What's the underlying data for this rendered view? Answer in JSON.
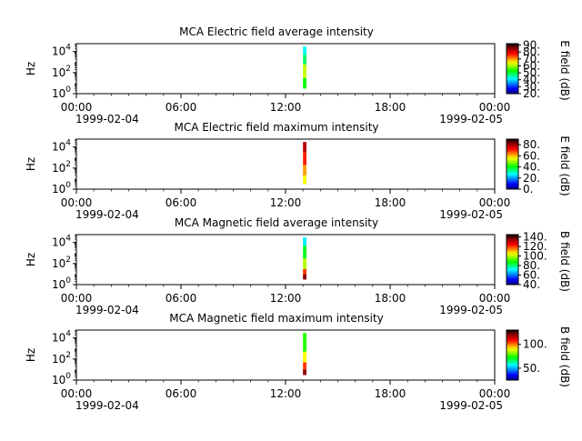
{
  "chart_data": [
    {
      "type": "heatmap",
      "title": "MCA  Electric field average intensity",
      "ylabel": "Hz",
      "colorbar_label": "E field (dB)",
      "colorbar_range": [
        20,
        92
      ],
      "colorbar_ticks": [
        "20.",
        "30.",
        "40.",
        "50.",
        "60.",
        "70.",
        "80.",
        "90."
      ],
      "y_scale": "log",
      "y_ticks": [
        {
          "base": "10",
          "exp": "0"
        },
        {
          "base": "10",
          "exp": "2"
        },
        {
          "base": "10",
          "exp": "4"
        }
      ],
      "x_ticks": [
        "00:00",
        "06:00",
        "12:00",
        "18:00",
        "00:00"
      ],
      "x_dates": [
        "1999-02-04",
        "1999-02-05"
      ],
      "burst": {
        "start": "13:00",
        "end": "13:12",
        "freq_min": 3,
        "freq_max": 30000,
        "levels": [
          {
            "freq_from": 3,
            "freq_to": 30,
            "value": 52
          },
          {
            "freq_from": 30,
            "freq_to": 600,
            "value": 62
          },
          {
            "freq_from": 600,
            "freq_to": 5000,
            "value": 48
          },
          {
            "freq_from": 5000,
            "freq_to": 30000,
            "value": 42
          }
        ]
      }
    },
    {
      "type": "heatmap",
      "title": "MCA  Electric field maximum intensity",
      "ylabel": "Hz",
      "colorbar_label": "E field (dB)",
      "colorbar_range": [
        0,
        90
      ],
      "colorbar_ticks": [
        "0.",
        "20.",
        "40.",
        "60.",
        "80."
      ],
      "y_scale": "log",
      "y_ticks": [
        {
          "base": "10",
          "exp": "0"
        },
        {
          "base": "10",
          "exp": "2"
        },
        {
          "base": "10",
          "exp": "4"
        }
      ],
      "x_ticks": [
        "00:00",
        "06:00",
        "12:00",
        "18:00",
        "00:00"
      ],
      "x_dates": [
        "1999-02-04",
        "1999-02-05"
      ],
      "burst": {
        "start": "13:00",
        "end": "13:12",
        "freq_min": 3,
        "freq_max": 30000,
        "levels": [
          {
            "freq_from": 3,
            "freq_to": 20,
            "value": 55
          },
          {
            "freq_from": 20,
            "freq_to": 200,
            "value": 62
          },
          {
            "freq_from": 200,
            "freq_to": 3000,
            "value": 70
          },
          {
            "freq_from": 3000,
            "freq_to": 30000,
            "value": 78
          }
        ]
      }
    },
    {
      "type": "heatmap",
      "title": "MCA  Magnetic field average intensity",
      "ylabel": "Hz",
      "colorbar_label": "B field (dB)",
      "colorbar_range": [
        40,
        145
      ],
      "colorbar_ticks": [
        "40.",
        "60.",
        "80.",
        "100.",
        "120.",
        "140."
      ],
      "y_scale": "log",
      "y_ticks": [
        {
          "base": "10",
          "exp": "0"
        },
        {
          "base": "10",
          "exp": "2"
        },
        {
          "base": "10",
          "exp": "4"
        }
      ],
      "x_ticks": [
        "00:00",
        "06:00",
        "12:00",
        "18:00",
        "00:00"
      ],
      "x_dates": [
        "1999-02-04",
        "1999-02-05"
      ],
      "burst": {
        "start": "13:00",
        "end": "13:12",
        "freq_min": 3,
        "freq_max": 30000,
        "levels": [
          {
            "freq_from": 3,
            "freq_to": 10,
            "value": 135
          },
          {
            "freq_from": 10,
            "freq_to": 30,
            "value": 120
          },
          {
            "freq_from": 30,
            "freq_to": 300,
            "value": 100
          },
          {
            "freq_from": 300,
            "freq_to": 5000,
            "value": 85
          },
          {
            "freq_from": 5000,
            "freq_to": 30000,
            "value": 70
          }
        ]
      }
    },
    {
      "type": "heatmap",
      "title": "MCA  Magnetic field maximum intensity",
      "ylabel": "Hz",
      "colorbar_label": "B field (dB)",
      "colorbar_range": [
        25,
        130
      ],
      "colorbar_ticks": [
        "50.",
        "100."
      ],
      "y_scale": "log",
      "y_ticks": [
        {
          "base": "10",
          "exp": "0"
        },
        {
          "base": "10",
          "exp": "2"
        },
        {
          "base": "10",
          "exp": "4"
        }
      ],
      "x_ticks": [
        "00:00",
        "06:00",
        "12:00",
        "18:00",
        "00:00"
      ],
      "x_dates": [
        "1999-02-04",
        "1999-02-05"
      ],
      "burst": {
        "start": "13:00",
        "end": "13:12",
        "freq_min": 3,
        "freq_max": 30000,
        "levels": [
          {
            "freq_from": 3,
            "freq_to": 10,
            "value": 120
          },
          {
            "freq_from": 10,
            "freq_to": 50,
            "value": 105
          },
          {
            "freq_from": 50,
            "freq_to": 500,
            "value": 90
          },
          {
            "freq_from": 500,
            "freq_to": 30000,
            "value": 75
          }
        ]
      }
    }
  ]
}
